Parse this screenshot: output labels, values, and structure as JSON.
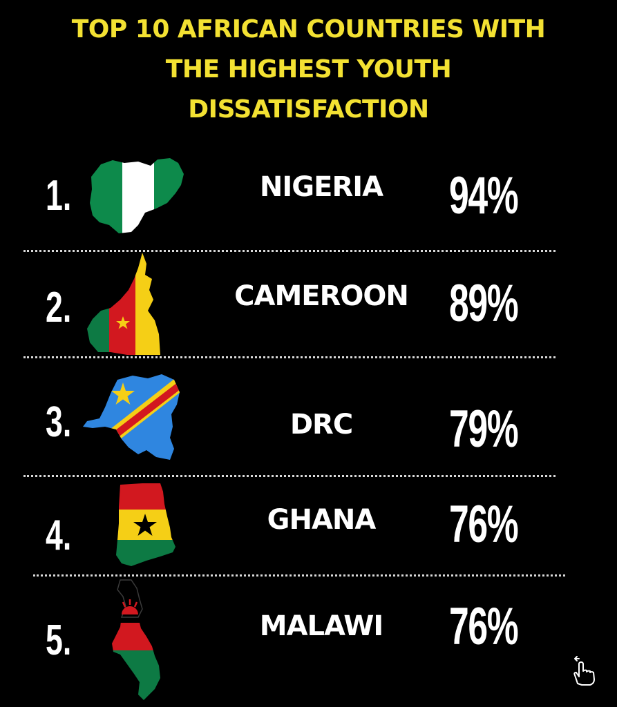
{
  "title": {
    "line1": "TOP 10 AFRICAN COUNTRIES WITH",
    "line2": "THE HIGHEST YOUTH",
    "line3": "DISSATISFACTION"
  },
  "rows": [
    {
      "rank": "1.",
      "country": "NIGERIA",
      "percent": "94%",
      "flag_icon": "nigeria-flag-map-icon"
    },
    {
      "rank": "2.",
      "country": "CAMEROON",
      "percent": "89%",
      "flag_icon": "cameroon-flag-map-icon"
    },
    {
      "rank": "3.",
      "country": "DRC",
      "percent": "79%",
      "flag_icon": "drc-flag-map-icon"
    },
    {
      "rank": "4.",
      "country": "GHANA",
      "percent": "76%",
      "flag_icon": "ghana-flag-map-icon"
    },
    {
      "rank": "5.",
      "country": "MALAWI",
      "percent": "76%",
      "flag_icon": "malawi-flag-map-icon"
    }
  ],
  "colors": {
    "background": "#000000",
    "title": "#f3e132",
    "text": "#ffffff",
    "separator": "#d9d9d9"
  },
  "swipe_icon": "swipe-hand-icon"
}
